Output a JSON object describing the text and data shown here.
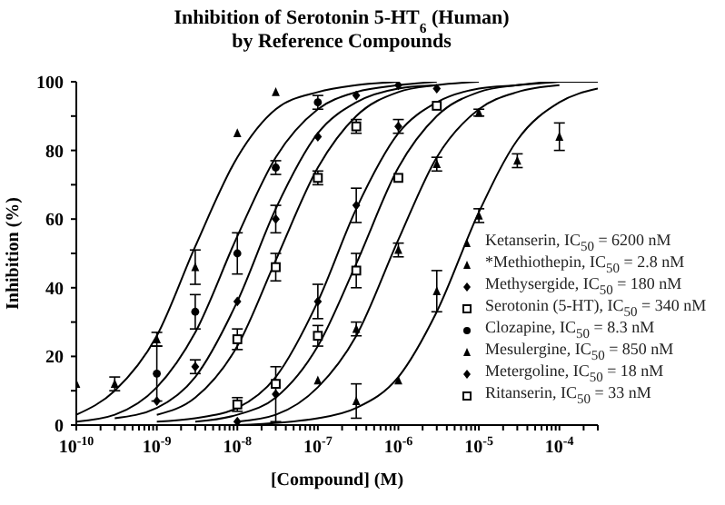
{
  "chart_data": {
    "type": "scatter",
    "title": "Inhibition of Serotonin 5-HT$_{6}$ (Human)",
    "subtitle": "by Reference Compounds",
    "xlabel": "[Compound] (M)",
    "ylabel": "Inhibition (%)",
    "log": "x",
    "legend": "bottom right",
    "xlim": [
      1e-10,
      0.0003
    ],
    "ylim": [
      0,
      100
    ],
    "xticks": [
      {
        "value": 1e-10,
        "label": "10$^{-10}$"
      },
      {
        "value": 2e-10,
        "label": null
      },
      {
        "value": 3e-10,
        "label": null
      },
      {
        "value": 4e-10,
        "label": null
      },
      {
        "value": 5e-10,
        "label": null
      },
      {
        "value": 6e-10,
        "label": null
      },
      {
        "value": 7e-10,
        "label": null
      },
      {
        "value": 8e-10,
        "label": null
      },
      {
        "value": 9e-10,
        "label": null
      },
      {
        "value": 1e-09,
        "label": "10$^{-9}$"
      },
      {
        "value": 2e-09,
        "label": null
      },
      {
        "value": 3e-09,
        "label": null
      },
      {
        "value": 4e-09,
        "label": null
      },
      {
        "value": 5e-09,
        "label": null
      },
      {
        "value": 6e-09,
        "label": null
      },
      {
        "value": 7e-09,
        "label": null
      },
      {
        "value": 8e-09,
        "label": null
      },
      {
        "value": 9e-09,
        "label": null
      },
      {
        "value": 1e-08,
        "label": "10$^{-8}$"
      },
      {
        "value": 2e-08,
        "label": null
      },
      {
        "value": 3e-08,
        "label": null
      },
      {
        "value": 4e-08,
        "label": null
      },
      {
        "value": 5e-08,
        "label": null
      },
      {
        "value": 6e-08,
        "label": null
      },
      {
        "value": 7e-08,
        "label": null
      },
      {
        "value": 8e-08,
        "label": null
      },
      {
        "value": 9e-08,
        "label": null
      },
      {
        "value": 1e-07,
        "label": "10$^{-7}$"
      },
      {
        "value": 2e-07,
        "label": null
      },
      {
        "value": 3e-07,
        "label": null
      },
      {
        "value": 4e-07,
        "label": null
      },
      {
        "value": 5e-07,
        "label": null
      },
      {
        "value": 6e-07,
        "label": null
      },
      {
        "value": 7e-07,
        "label": null
      },
      {
        "value": 8e-07,
        "label": null
      },
      {
        "value": 9e-07,
        "label": null
      },
      {
        "value": 1e-06,
        "label": "10$^{-6}$"
      },
      {
        "value": 2e-06,
        "label": null
      },
      {
        "value": 3e-06,
        "label": null
      },
      {
        "value": 4e-06,
        "label": null
      },
      {
        "value": 5e-06,
        "label": null
      },
      {
        "value": 6e-06,
        "label": null
      },
      {
        "value": 7e-06,
        "label": null
      },
      {
        "value": 8e-06,
        "label": null
      },
      {
        "value": 9e-06,
        "label": null
      },
      {
        "value": 1e-05,
        "label": "10$^{-5}$"
      },
      {
        "value": 2e-05,
        "label": null
      },
      {
        "value": 3e-05,
        "label": null
      },
      {
        "value": 4e-05,
        "label": null
      },
      {
        "value": 5e-05,
        "label": null
      },
      {
        "value": 6e-05,
        "label": null
      },
      {
        "value": 7e-05,
        "label": null
      },
      {
        "value": 8e-05,
        "label": null
      },
      {
        "value": 9e-05,
        "label": null
      },
      {
        "value": 0.0001,
        "label": "10$^{-4}$"
      },
      {
        "value": 0.0002,
        "label": null
      },
      {
        "value": 0.0003,
        "label": null
      }
    ],
    "yticks": [
      0,
      {
        "value": 10,
        "label": null
      },
      20,
      {
        "value": 30,
        "label": null
      },
      40,
      {
        "value": 50,
        "label": null
      },
      60,
      {
        "value": 70,
        "label": null
      },
      80,
      {
        "value": 90,
        "label": null
      },
      100
    ],
    "series": [
      {
        "name": "Ketanserin, IC$_{50}$ = 6200 nM",
        "marker": "triangle",
        "color": "#000000",
        "x": [
          3e-07,
          1e-06,
          3e-06,
          1e-05,
          3e-05,
          0.0001
        ],
        "values": [
          7,
          13,
          39,
          61,
          77,
          84
        ],
        "errors": [
          5,
          null,
          6,
          2,
          2,
          4
        ]
      },
      {
        "name": "*Methiothepin, IC$_{50}$ = 2.8 nM",
        "marker": "triangle",
        "color": "#000000",
        "x": [
          1e-10,
          3e-10,
          1e-09,
          3e-09,
          1e-08,
          3e-08
        ],
        "values": [
          12,
          12,
          25,
          46,
          85,
          97
        ],
        "errors": [
          null,
          2,
          2,
          5,
          null,
          null
        ]
      },
      {
        "name": "Methysergide, IC$_{50}$ = 180 nM",
        "marker": "diamond",
        "color": "#000000",
        "x": [
          1e-08,
          3e-08,
          1e-07,
          3e-07,
          1e-06,
          3e-06
        ],
        "values": [
          1,
          9,
          36,
          64,
          87,
          98
        ],
        "errors": [
          null,
          8,
          5,
          5,
          2,
          null
        ]
      },
      {
        "name": "Serotonin (5-HT), IC$_{50}$ = 340 nM",
        "marker": "square",
        "color": "#000000",
        "x": [
          1e-08,
          3e-08,
          1e-07,
          3e-07,
          1e-06,
          3e-06
        ],
        "values": [
          6,
          12,
          26,
          45,
          72,
          93
        ],
        "errors": [
          2,
          null,
          3,
          5,
          null,
          null
        ]
      },
      {
        "name": "Clozapine, IC$_{50}$ = 8.3 nM",
        "marker": "circle",
        "color": "#000000",
        "x": [
          1e-09,
          3e-09,
          1e-08,
          3e-08,
          1e-07
        ],
        "values": [
          15,
          33,
          50,
          75,
          94
        ],
        "errors": [
          8,
          5,
          6,
          2,
          2
        ]
      },
      {
        "name": "Mesulergine, IC$_{50}$ = 850 nM",
        "marker": "triangle",
        "color": "#000000",
        "x": [
          1e-07,
          3e-07,
          1e-06,
          3e-06,
          1e-05
        ],
        "values": [
          13,
          28,
          51,
          76,
          91
        ],
        "errors": [
          null,
          2,
          2,
          2,
          1
        ]
      },
      {
        "name": "Metergoline, IC$_{50}$ = 18 nM",
        "marker": "diamond",
        "color": "#000000",
        "x": [
          1e-09,
          3e-09,
          1e-08,
          3e-08,
          1e-07,
          3e-07,
          1e-06
        ],
        "values": [
          7,
          17,
          36,
          60,
          84,
          96,
          99
        ],
        "errors": [
          null,
          2,
          null,
          4,
          null,
          null,
          null
        ]
      },
      {
        "name": "Ritanserin, IC$_{50}$ = 33 nM",
        "marker": "square",
        "color": "#000000",
        "x": [
          1e-08,
          3e-08,
          1e-07,
          3e-07
        ],
        "values": [
          25,
          46,
          72,
          87
        ],
        "errors": [
          3,
          4,
          2,
          2
        ]
      },
      {
        "type": "line",
        "marker": "none",
        "color": "#000000",
        "x": [
          1e-08,
          1e-07,
          3e-07,
          1e-06,
          3e-06,
          1e-05,
          3e-05,
          0.0001,
          0.0003
        ],
        "values": [
          0,
          2,
          5,
          14,
          33,
          62,
          83,
          94,
          98
        ]
      },
      {
        "type": "line",
        "marker": "none",
        "color": "#000000",
        "x": [
          1e-10,
          3e-10,
          1e-09,
          3e-09,
          1e-08,
          3e-08,
          1e-07,
          3e-07,
          1e-06
        ],
        "values": [
          3,
          10,
          26,
          52,
          78,
          92,
          97,
          99,
          100
        ]
      },
      {
        "type": "line",
        "marker": "none",
        "color": "#000000",
        "x": [
          1e-09,
          3e-09,
          1e-08,
          3e-08,
          1e-07,
          3e-07,
          1e-06,
          3e-06,
          1e-05,
          3e-05,
          0.0001
        ],
        "values": [
          1,
          2,
          5,
          14,
          36,
          63,
          85,
          94,
          98,
          99,
          100
        ]
      },
      {
        "type": "line",
        "marker": "none",
        "color": "#000000",
        "x": [
          3e-09,
          1e-08,
          3e-08,
          1e-07,
          3e-07,
          1e-06,
          3e-06,
          1e-05,
          3e-05,
          0.0001,
          0.0003
        ],
        "values": [
          1,
          3,
          8,
          23,
          47,
          75,
          90,
          97,
          99,
          100,
          100
        ]
      },
      {
        "type": "line",
        "marker": "none",
        "color": "#000000",
        "x": [
          1e-10,
          3e-10,
          1e-09,
          3e-09,
          1e-08,
          3e-08,
          1e-07,
          3e-07,
          1e-06,
          3e-06
        ],
        "values": [
          1,
          3,
          11,
          27,
          55,
          78,
          92,
          97,
          99,
          100
        ]
      },
      {
        "type": "line",
        "marker": "none",
        "color": "#000000",
        "x": [
          1e-08,
          3e-08,
          1e-07,
          3e-07,
          1e-06,
          3e-06,
          1e-05,
          3e-05,
          0.0001
        ],
        "values": [
          1,
          3,
          11,
          26,
          54,
          78,
          92,
          97,
          99
        ]
      },
      {
        "type": "line",
        "marker": "none",
        "color": "#000000",
        "x": [
          3e-10,
          1e-09,
          3e-09,
          1e-08,
          3e-08,
          1e-07,
          3e-07,
          1e-06,
          3e-06
        ],
        "values": [
          2,
          5,
          14,
          36,
          63,
          85,
          94,
          98,
          99
        ]
      },
      {
        "type": "line",
        "marker": "none",
        "color": "#000000",
        "x": [
          1e-09,
          3e-09,
          1e-08,
          3e-08,
          1e-07,
          3e-07,
          1e-06,
          3e-06,
          1e-05
        ],
        "values": [
          3,
          8,
          23,
          48,
          75,
          90,
          97,
          99,
          100
        ]
      }
    ]
  }
}
